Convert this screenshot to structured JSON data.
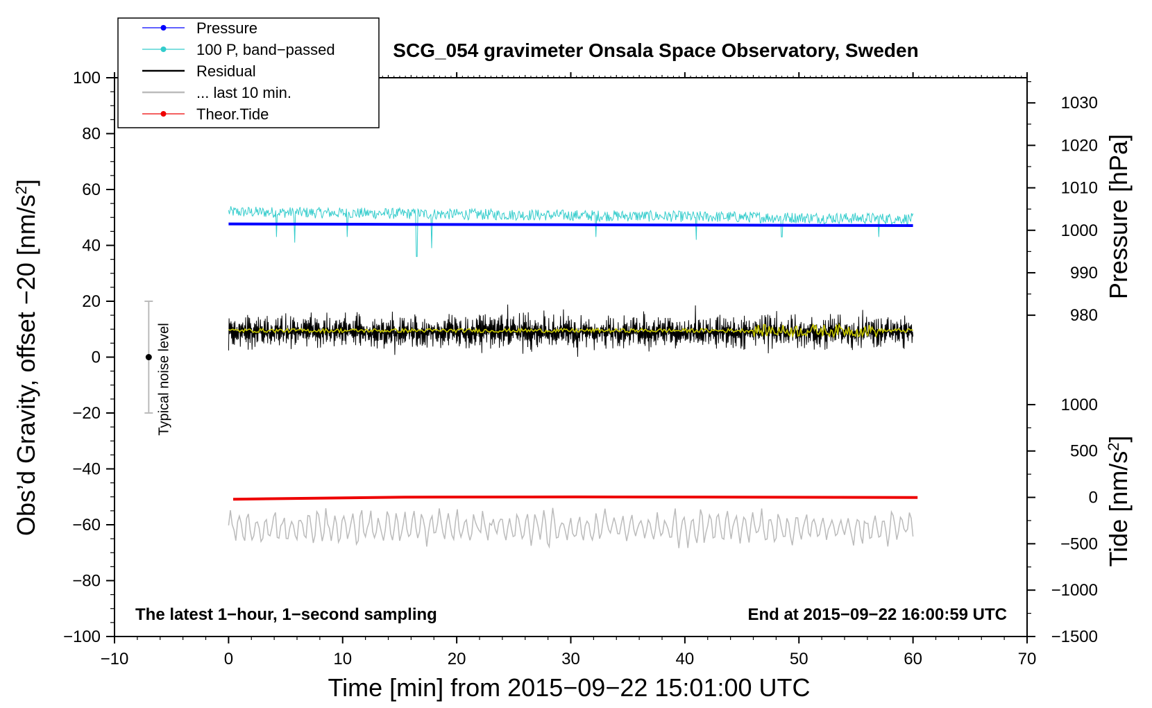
{
  "chart_data": {
    "type": "line",
    "title": "SCG_054 gravimeter Onsala Space Observatory, Sweden",
    "xlabel": "Time [min] from 2015−09−22 15:01:00 UTC",
    "ylabel_left": "Obs’d Gravity, offset −20 [nm/s",
    "ylabel_left_unit_exp": "2",
    "ylabel_left_close": "]",
    "ylabel_right_pressure": "Pressure [hPa]",
    "ylabel_right_tide": "Tide [nm/s",
    "ylabel_right_tide_exp": "2",
    "ylabel_right_tide_close": "]",
    "xlim": [
      -10,
      70
    ],
    "ylim_left": [
      -100,
      100
    ],
    "x_ticks": [
      {
        "v": -10,
        "label": "−10"
      },
      {
        "v": 0,
        "label": "0"
      },
      {
        "v": 10,
        "label": "10"
      },
      {
        "v": 20,
        "label": "20"
      },
      {
        "v": 30,
        "label": "30"
      },
      {
        "v": 40,
        "label": "40"
      },
      {
        "v": 50,
        "label": "50"
      },
      {
        "v": 60,
        "label": "60"
      },
      {
        "v": 70,
        "label": "70"
      }
    ],
    "y_ticks_left": [
      {
        "v": 100,
        "label": "100"
      },
      {
        "v": 80,
        "label": "80"
      },
      {
        "v": 60,
        "label": "60"
      },
      {
        "v": 40,
        "label": "40"
      },
      {
        "v": 20,
        "label": "20"
      },
      {
        "v": 0,
        "label": "0"
      },
      {
        "v": -20,
        "label": "−20"
      },
      {
        "v": -40,
        "label": "−40"
      },
      {
        "v": -60,
        "label": "−60"
      },
      {
        "v": -80,
        "label": "−80"
      },
      {
        "v": -100,
        "label": "−100"
      }
    ],
    "pressure_axis": {
      "mapping": {
        "p_hi": 1030,
        "g_at_p_hi": 91,
        "p_lo": 980,
        "g_at_p_lo": 15
      },
      "ticks": [
        {
          "v": 1030,
          "label": "1030"
        },
        {
          "v": 1020,
          "label": "1020"
        },
        {
          "v": 1010,
          "label": "1010"
        },
        {
          "v": 1000,
          "label": "1000"
        },
        {
          "v": 990,
          "label": "990"
        },
        {
          "v": 980,
          "label": "980"
        }
      ]
    },
    "tide_axis": {
      "mapping": {
        "t_hi": 1000,
        "g_at_t_hi": -17,
        "t_lo": -1500,
        "g_at_t_lo": -100
      },
      "ticks": [
        {
          "v": 1000,
          "label": "1000"
        },
        {
          "v": 500,
          "label": "500"
        },
        {
          "v": 0,
          "label": "0"
        },
        {
          "v": -500,
          "label": "−500"
        },
        {
          "v": -1000,
          "label": "−1000"
        },
        {
          "v": -1500,
          "label": "−1500"
        }
      ]
    },
    "series": [
      {
        "name": "Pressure",
        "color": "#0000ff",
        "axis": "pressure",
        "x": [
          0,
          15,
          30,
          45,
          60
        ],
        "values": [
          1001.5,
          1001.4,
          1001.3,
          1001.2,
          1001.1
        ]
      },
      {
        "name": "100 P, band−passed",
        "color": "#33cccc",
        "axis": "gravity",
        "x": [
          0,
          60
        ],
        "mean": [
          52,
          49.5
        ],
        "amplitude": 2,
        "spikes": [
          {
            "x": 4.2,
            "y": 43
          },
          {
            "x": 5.8,
            "y": 41
          },
          {
            "x": 10.4,
            "y": 43
          },
          {
            "x": 16.5,
            "y": 36
          },
          {
            "x": 17.8,
            "y": 39
          },
          {
            "x": 32.2,
            "y": 43
          },
          {
            "x": 41.0,
            "y": 42
          },
          {
            "x": 48.5,
            "y": 43
          },
          {
            "x": 57.0,
            "y": 43
          }
        ]
      },
      {
        "name": "Residual",
        "color": "#000000",
        "axis": "gravity",
        "x": [
          0,
          60
        ],
        "mean": 9,
        "amplitude": 5
      },
      {
        "name": "Residual (smoothed)",
        "color": "#c8c800",
        "axis": "gravity",
        "x": [
          0,
          60
        ],
        "mean": 9.5
      },
      {
        "name": "... last 10 min.",
        "color": "#bbbbbb",
        "axis": "gravity",
        "x": [
          0,
          60
        ],
        "mean": -61,
        "amplitude": 5
      },
      {
        "name": "Theor.Tide",
        "color": "#ee0000",
        "axis": "tide",
        "x": [
          0,
          15,
          30,
          45,
          60
        ],
        "values": [
          -20,
          3,
          5,
          3,
          -2
        ]
      }
    ],
    "noise_bar": {
      "label": "Typical noise level",
      "x": -7,
      "center": 0,
      "low": -20,
      "high": 20
    },
    "legend": [
      {
        "label": "Pressure",
        "color": "#0000ff",
        "marker": true
      },
      {
        "label": "100 P, band−passed",
        "color": "#33cccc",
        "marker": true
      },
      {
        "label": "Residual",
        "color": "#000000",
        "marker": false
      },
      {
        "label": "... last 10 min.",
        "color": "#bbbbbb",
        "marker": false
      },
      {
        "label": "Theor.Tide",
        "color": "#ee0000",
        "marker": true
      }
    ],
    "legend_placement": "top-left",
    "note_left": "The latest 1−hour, 1−second sampling",
    "note_right": "End at 2015−09−22 16:00:59 UTC"
  }
}
